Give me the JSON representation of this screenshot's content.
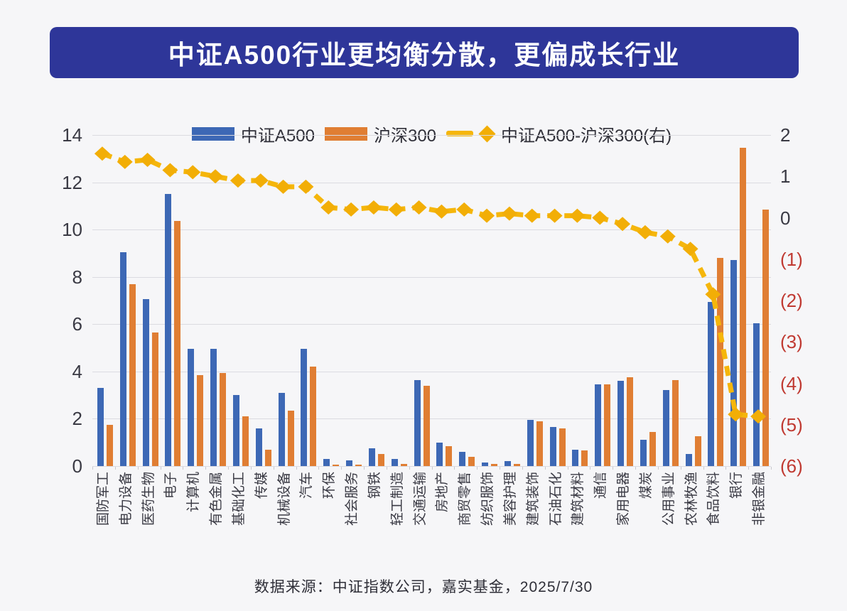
{
  "title": "中证A500行业更均衡分散，更偏成长行业",
  "source_note": "数据来源：中证指数公司，嘉实基金，2025/7/30",
  "colors": {
    "banner_bg": "#2E3699",
    "banner_text": "#FFFFFF",
    "bar_blue": "#3D68B5",
    "bar_orange": "#E07E33",
    "line_gold": "#F5B60B",
    "marker_gold": "#F2AE06",
    "axis_text": "#3A3A44",
    "negative_tick_text": "#C03A32",
    "gridline": "#DBDBE1",
    "page_bg": "#F6F6F8"
  },
  "chart_data": {
    "type": "bar",
    "subtype": "grouped bars with difference line on secondary axis",
    "categories": [
      "国防军工",
      "电力设备",
      "医药生物",
      "电子",
      "计算机",
      "有色金属",
      "基础化工",
      "传媒",
      "机械设备",
      "汽车",
      "环保",
      "社会服务",
      "钢铁",
      "轻工制造",
      "交通运输",
      "房地产",
      "商贸零售",
      "纺织服饰",
      "美容护理",
      "建筑装饰",
      "石油石化",
      "建筑材料",
      "通信",
      "家用电器",
      "煤炭",
      "公用事业",
      "农林牧渔",
      "食品饮料",
      "银行",
      "非银金融"
    ],
    "series": [
      {
        "name": "中证A500",
        "type": "bar",
        "axis": "left",
        "color": "#3D68B5",
        "values": [
          3.3,
          9.05,
          7.05,
          11.5,
          4.95,
          4.95,
          3.0,
          1.6,
          3.1,
          4.95,
          0.3,
          0.25,
          0.75,
          0.3,
          3.65,
          1.0,
          0.6,
          0.15,
          0.2,
          1.95,
          1.65,
          0.7,
          3.45,
          3.6,
          1.1,
          3.2,
          0.5,
          6.95,
          8.7,
          6.05
        ]
      },
      {
        "name": "沪深300",
        "type": "bar",
        "axis": "left",
        "color": "#E07E33",
        "values": [
          1.75,
          7.7,
          5.65,
          10.35,
          3.85,
          3.95,
          2.1,
          0.7,
          2.35,
          4.2,
          0.05,
          0.05,
          0.5,
          0.1,
          3.4,
          0.85,
          0.4,
          0.1,
          0.1,
          1.9,
          1.6,
          0.65,
          3.45,
          3.75,
          1.45,
          3.65,
          1.25,
          8.8,
          13.45,
          10.85
        ]
      },
      {
        "name": "中证A500-沪深300(右)",
        "type": "line",
        "axis": "right",
        "color": "#F5B60B",
        "dashed": true,
        "marker": "diamond",
        "values": [
          1.55,
          1.35,
          1.4,
          1.15,
          1.1,
          1.0,
          0.9,
          0.9,
          0.75,
          0.75,
          0.25,
          0.2,
          0.25,
          0.2,
          0.25,
          0.15,
          0.2,
          0.05,
          0.1,
          0.05,
          0.05,
          0.05,
          0.0,
          -0.15,
          -0.35,
          -0.45,
          -0.75,
          -1.85,
          -4.75,
          -4.8
        ]
      }
    ],
    "left_axis": {
      "min": 0,
      "max": 14,
      "ticks": [
        14,
        12,
        10,
        8,
        6,
        4,
        2,
        0
      ]
    },
    "right_axis": {
      "min": -6,
      "max": 2,
      "tick_values": [
        2,
        1,
        0,
        -1,
        -2,
        -3,
        -4,
        -5,
        -6
      ],
      "tick_labels": [
        "2",
        "1",
        "0",
        "(1)",
        "(2)",
        "(3)",
        "(4)",
        "(5)",
        "(6)"
      ]
    },
    "grid": true,
    "legend_position": "top"
  }
}
